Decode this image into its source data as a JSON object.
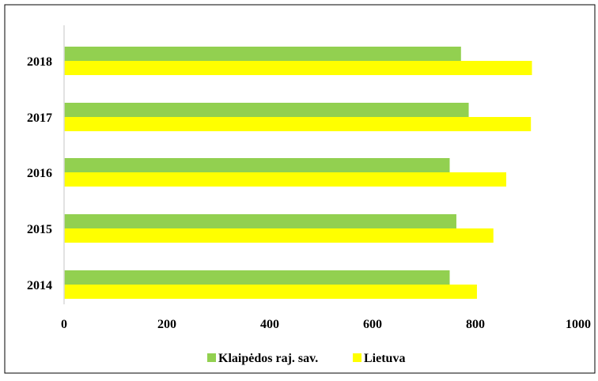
{
  "chart_data": {
    "type": "bar",
    "orientation": "horizontal",
    "categories": [
      "2014",
      "2015",
      "2016",
      "2017",
      "2018"
    ],
    "series": [
      {
        "name": "Klaipėdos raj. sav.",
        "color": "#92d050",
        "values": [
          750,
          763,
          750,
          787,
          772
        ]
      },
      {
        "name": "Lietuva",
        "color": "#ffff00",
        "values": [
          803,
          835,
          860,
          908,
          910
        ]
      }
    ],
    "x_ticks": [
      "0",
      "200",
      "400",
      "600",
      "800",
      "1000"
    ],
    "xlim": [
      0,
      1000
    ],
    "grid": false,
    "legend_position": "bottom"
  }
}
